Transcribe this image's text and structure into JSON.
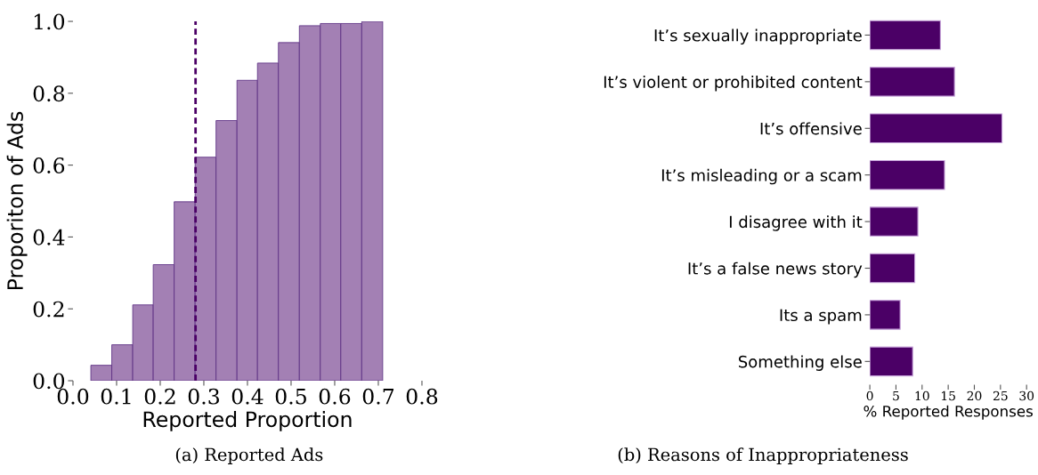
{
  "chart_data": [
    {
      "type": "histogram",
      "xlabel": "Reported Proportion",
      "ylabel": "Proporiton of Ads",
      "bins": [
        0.041,
        0.089,
        0.137,
        0.184,
        0.232,
        0.28,
        0.328,
        0.376,
        0.423,
        0.471,
        0.519,
        0.567,
        0.614,
        0.662,
        0.71
      ],
      "values": [
        0.043,
        0.1,
        0.211,
        0.323,
        0.498,
        0.622,
        0.724,
        0.836,
        0.884,
        0.941,
        0.988,
        0.994,
        0.994,
        1.0
      ],
      "color": "#a380b4",
      "xlim": [
        0,
        0.8
      ],
      "ylim": [
        0,
        1.0
      ],
      "xticks": [
        {
          "value": 0,
          "label": "0.0"
        },
        0.1,
        0.2,
        0.3,
        0.4,
        0.5,
        0.6,
        0.7,
        0.8
      ],
      "yticks": [
        {
          "value": 0,
          "label": "0.0"
        },
        0.2,
        0.4,
        0.6,
        0.8,
        {
          "value": 1,
          "label": "1.0"
        }
      ],
      "ref_lines": [
        {
          "axis": "x",
          "value": 0.281,
          "label": null,
          "color": "#4b0066",
          "line_style": "dashed"
        }
      ],
      "grid": false,
      "legend": false,
      "annotations": [
        "(a) Reported Ads"
      ]
    },
    {
      "type": "bar",
      "orientation": "horizontal",
      "xlabel": "% Reported Responses",
      "categories": [
        "It’s sexually inappropriate",
        "It’s violent or prohibited content",
        "It’s offensive",
        "It’s misleading or a scam",
        "I disagree with it",
        "It’s a false news story",
        "Its a spam",
        "Something else"
      ],
      "values": [
        13.5,
        16.2,
        25.3,
        14.3,
        9.2,
        8.6,
        5.8,
        8.2
      ],
      "color": "#4b0066",
      "xlim": [
        0,
        30
      ],
      "xticks": [
        0,
        5,
        10,
        15,
        20,
        25,
        30
      ],
      "grid": false,
      "legend": false,
      "annotations": [
        "(b) Reasons of Inappropriateness"
      ]
    }
  ]
}
